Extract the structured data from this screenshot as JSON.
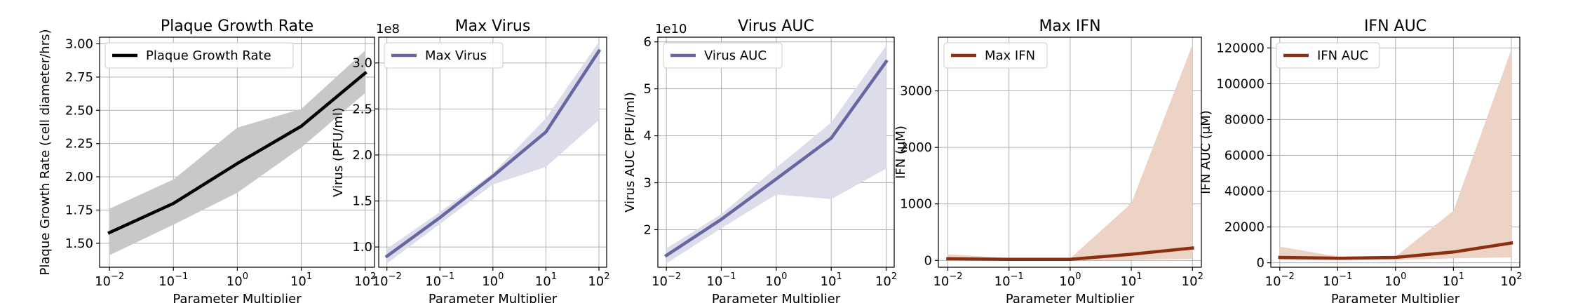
{
  "chart_data": [
    {
      "type": "line",
      "title": "Plaque Growth Rate",
      "xlabel": "Parameter Multiplier",
      "ylabel": "Plaque Growth Rate (cell diameter/hrs)",
      "xscale": "log",
      "xlim": [
        0.007,
        140
      ],
      "ylim": [
        1.32,
        3.05
      ],
      "yticks": [
        1.5,
        1.75,
        2.0,
        2.25,
        2.5,
        2.75,
        3.0
      ],
      "ytick_labels": [
        "1.50",
        "1.75",
        "2.00",
        "2.25",
        "2.50",
        "2.75",
        "3.00"
      ],
      "offset_label": "",
      "xticks": [
        0.01,
        0.1,
        1,
        10,
        100
      ],
      "xtick_labels": [
        {
          "base": "10",
          "exp": "−2"
        },
        {
          "base": "10",
          "exp": "−1"
        },
        {
          "base": "10",
          "exp": "0"
        },
        {
          "base": "10",
          "exp": "1"
        },
        {
          "base": "10",
          "exp": "2"
        }
      ],
      "grid": true,
      "legend_position": "top-left",
      "series": [
        {
          "name": "Plaque Growth Rate",
          "color": "#000000",
          "band_color": "#c8c8c8",
          "x": [
            0.01,
            0.1,
            1,
            10,
            100
          ],
          "y": [
            1.58,
            1.8,
            2.1,
            2.38,
            2.78
          ],
          "lower": [
            1.41,
            1.64,
            1.88,
            2.22,
            2.63
          ],
          "upper": [
            1.76,
            1.98,
            2.37,
            2.51,
            2.95
          ]
        }
      ]
    },
    {
      "type": "line",
      "title": "Max Virus",
      "xlabel": "Parameter Multiplier",
      "ylabel": "Virus (PFU/ml)",
      "xscale": "log",
      "xlim": [
        0.007,
        140
      ],
      "ylim": [
        0.78,
        3.28
      ],
      "yticks": [
        1.0,
        1.5,
        2.0,
        2.5,
        3.0
      ],
      "ytick_labels": [
        "1.0",
        "1.5",
        "2.0",
        "2.5",
        "3.0"
      ],
      "offset_label": "1e8",
      "xticks": [
        0.01,
        0.1,
        1,
        10,
        100
      ],
      "xtick_labels": [
        {
          "base": "10",
          "exp": "−2"
        },
        {
          "base": "10",
          "exp": "−1"
        },
        {
          "base": "10",
          "exp": "0"
        },
        {
          "base": "10",
          "exp": "1"
        },
        {
          "base": "10",
          "exp": "2"
        }
      ],
      "grid": true,
      "legend_position": "top-left",
      "series": [
        {
          "name": "Max Virus",
          "color": "#6667a0",
          "band_color": "#dcdcea",
          "x": [
            0.01,
            0.1,
            1,
            10,
            100
          ],
          "y": [
            0.9,
            1.32,
            1.77,
            2.25,
            3.13
          ],
          "lower": [
            0.82,
            1.25,
            1.68,
            1.87,
            2.38
          ],
          "upper": [
            0.98,
            1.38,
            1.8,
            2.4,
            3.23
          ]
        }
      ]
    },
    {
      "type": "line",
      "title": "Virus AUC",
      "xlabel": "Parameter Multiplier",
      "ylabel": "Virus AUC (PFU/ml)",
      "xscale": "log",
      "xlim": [
        0.007,
        140
      ],
      "ylim": [
        1.2,
        6.1
      ],
      "yticks": [
        2,
        3,
        4,
        5,
        6
      ],
      "ytick_labels": [
        "2",
        "3",
        "4",
        "5",
        "6"
      ],
      "offset_label": "1e10",
      "xticks": [
        0.01,
        0.1,
        1,
        10,
        100
      ],
      "xtick_labels": [
        {
          "base": "10",
          "exp": "−2"
        },
        {
          "base": "10",
          "exp": "−1"
        },
        {
          "base": "10",
          "exp": "0"
        },
        {
          "base": "10",
          "exp": "1"
        },
        {
          "base": "10",
          "exp": "2"
        }
      ],
      "grid": true,
      "legend_position": "top-left",
      "series": [
        {
          "name": "Virus AUC",
          "color": "#6667a0",
          "band_color": "#dcdcea",
          "x": [
            0.01,
            0.1,
            1,
            10,
            100
          ],
          "y": [
            1.45,
            2.22,
            3.08,
            3.95,
            5.58
          ],
          "lower": [
            1.28,
            2.03,
            2.75,
            2.65,
            3.3
          ],
          "upper": [
            1.6,
            2.33,
            3.32,
            4.28,
            5.92
          ]
        }
      ]
    },
    {
      "type": "line",
      "title": "Max IFN",
      "xlabel": "Parameter Multiplier",
      "ylabel": "IFN (μM)",
      "xscale": "log",
      "xlim": [
        0.007,
        140
      ],
      "ylim": [
        -120,
        3950
      ],
      "yticks": [
        0,
        1000,
        2000,
        3000
      ],
      "ytick_labels": [
        "0",
        "1000",
        "2000",
        "3000"
      ],
      "offset_label": "",
      "xticks": [
        0.01,
        0.1,
        1,
        10,
        100
      ],
      "xtick_labels": [
        {
          "base": "10",
          "exp": "−2"
        },
        {
          "base": "10",
          "exp": "−1"
        },
        {
          "base": "10",
          "exp": "0"
        },
        {
          "base": "10",
          "exp": "1"
        },
        {
          "base": "10",
          "exp": "2"
        }
      ],
      "grid": true,
      "legend_position": "top-left",
      "series": [
        {
          "name": "Max IFN",
          "color": "#8b2e12",
          "band_color": "#ecd3c6",
          "x": [
            0.01,
            0.1,
            1,
            10,
            100
          ],
          "y": [
            30,
            20,
            20,
            110,
            220
          ],
          "lower": [
            5,
            5,
            5,
            10,
            30
          ],
          "upper": [
            110,
            40,
            35,
            1010,
            3820
          ]
        }
      ]
    },
    {
      "type": "line",
      "title": "IFN AUC",
      "xlabel": "Parameter Multiplier",
      "ylabel": "IFN AUC (μM)",
      "xscale": "log",
      "xlim": [
        0.007,
        140
      ],
      "ylim": [
        -2500,
        126000
      ],
      "yticks": [
        0,
        20000,
        40000,
        60000,
        80000,
        100000,
        120000
      ],
      "ytick_labels": [
        "0",
        "20000",
        "40000",
        "60000",
        "80000",
        "100000",
        "120000"
      ],
      "offset_label": "",
      "xticks": [
        0.01,
        0.1,
        1,
        10,
        100
      ],
      "xtick_labels": [
        {
          "base": "10",
          "exp": "−2"
        },
        {
          "base": "10",
          "exp": "−1"
        },
        {
          "base": "10",
          "exp": "0"
        },
        {
          "base": "10",
          "exp": "1"
        },
        {
          "base": "10",
          "exp": "2"
        }
      ],
      "grid": true,
      "legend_position": "top-left",
      "series": [
        {
          "name": "IFN AUC",
          "color": "#8b2e12",
          "band_color": "#ecd3c6",
          "x": [
            0.01,
            0.1,
            1,
            10,
            100
          ],
          "y": [
            3000,
            2500,
            3000,
            6000,
            11000
          ],
          "lower": [
            1500,
            1500,
            1500,
            2500,
            3000
          ],
          "upper": [
            9000,
            3500,
            3500,
            29000,
            119000
          ]
        }
      ]
    }
  ]
}
